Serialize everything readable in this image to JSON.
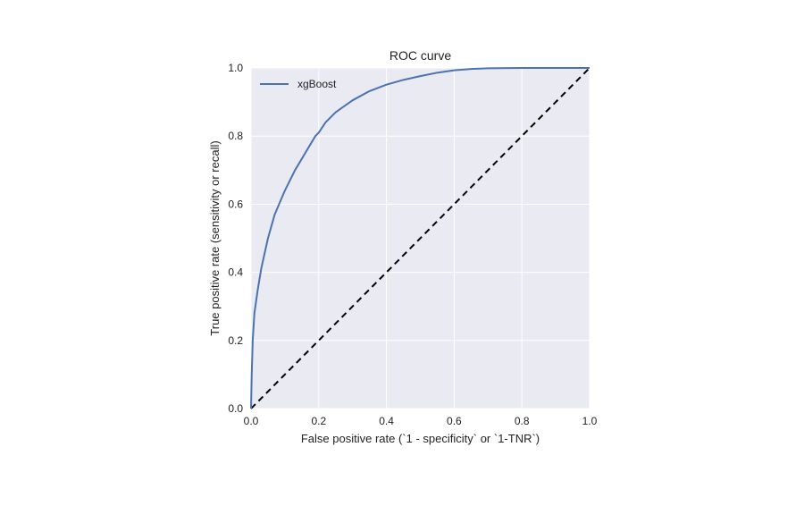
{
  "chart_data": {
    "type": "line",
    "title": "ROC curve",
    "xlabel": "False positive rate (`1 - specificity` or  `1-TNR`)",
    "ylabel": "True positive rate (sensitivity or recall)",
    "xlim": [
      0.0,
      1.0
    ],
    "ylim": [
      0.0,
      1.0
    ],
    "xticks": [
      "0.0",
      "0.2",
      "0.4",
      "0.6",
      "0.8",
      "1.0"
    ],
    "yticks": [
      "0.0",
      "0.2",
      "0.4",
      "0.6",
      "0.8",
      "1.0"
    ],
    "grid": true,
    "legend_position": "top-left",
    "colors": {
      "background": "#eaeaf2",
      "grid": "#ffffff",
      "series": "#4c72b0",
      "diagonal": "#000000"
    },
    "series": [
      {
        "name": "xgBoost",
        "x": [
          0.0,
          0.002,
          0.005,
          0.01,
          0.02,
          0.03,
          0.05,
          0.07,
          0.1,
          0.13,
          0.16,
          0.19,
          0.2,
          0.22,
          0.25,
          0.3,
          0.35,
          0.4,
          0.45,
          0.5,
          0.55,
          0.6,
          0.65,
          0.7,
          0.8,
          0.9,
          1.0
        ],
        "y": [
          0.0,
          0.1,
          0.2,
          0.28,
          0.35,
          0.41,
          0.5,
          0.57,
          0.64,
          0.7,
          0.75,
          0.8,
          0.81,
          0.84,
          0.87,
          0.905,
          0.932,
          0.951,
          0.965,
          0.976,
          0.986,
          0.993,
          0.997,
          0.999,
          1.0,
          1.0,
          1.0
        ]
      }
    ],
    "reference_line": {
      "x": [
        0.0,
        1.0
      ],
      "y": [
        0.0,
        1.0
      ],
      "style": "dashed"
    }
  }
}
